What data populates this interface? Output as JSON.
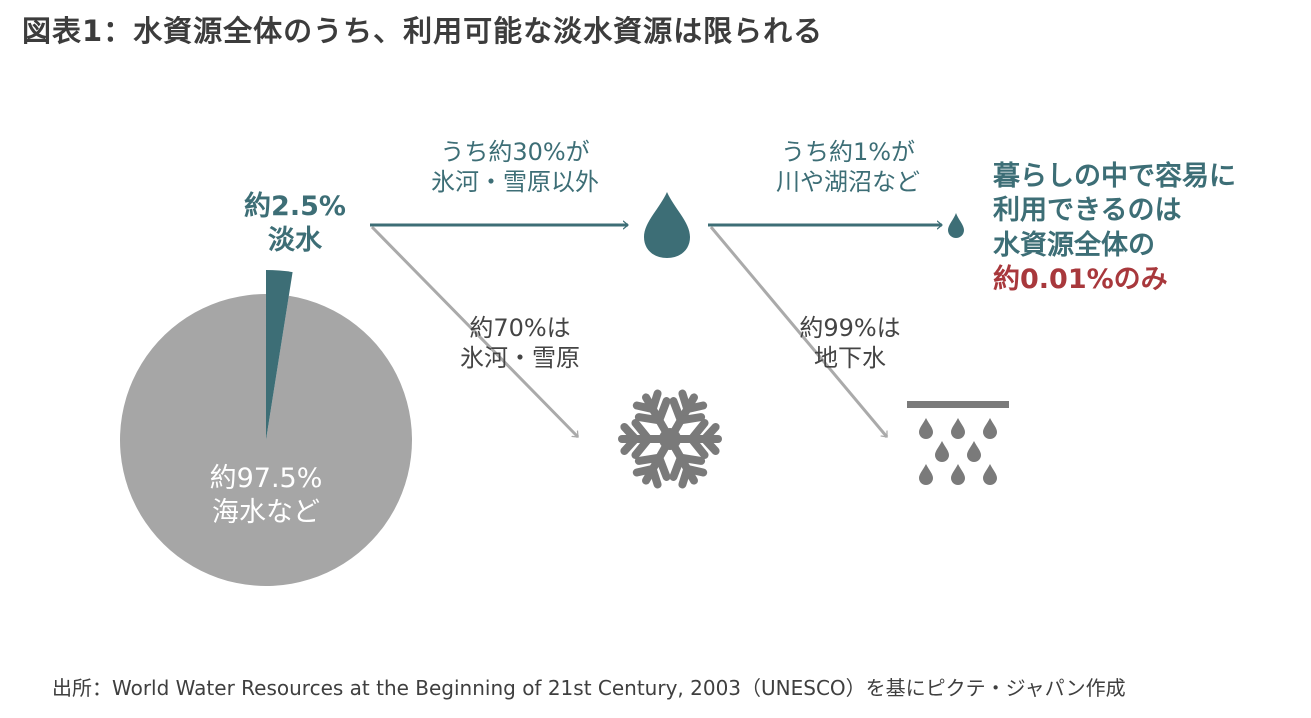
{
  "title": "図表1：水資源全体のうち、利用可能な淡水資源は限られる",
  "pie": {
    "freshwater_label": [
      "約2.5%",
      "淡水"
    ],
    "seawater_label": [
      "約97.5%",
      "海水など"
    ]
  },
  "chart_data": {
    "type": "pie",
    "categories": [
      "淡水",
      "海水など"
    ],
    "values": [
      2.5,
      97.5
    ],
    "colors": [
      "#3d6e76",
      "#a6a6a6"
    ]
  },
  "flow": {
    "to_drop_top": [
      "うち約30%が",
      "氷河・雪原以外"
    ],
    "to_snow": [
      "約70%は",
      "氷河・雪原"
    ],
    "to_small_drop_top": [
      "うち約1%が",
      "川や湖沼など"
    ],
    "to_ground": [
      "約99%は",
      "地下水"
    ]
  },
  "conclusion": {
    "lines": [
      "暮らしの中で容易に",
      "利用できるのは",
      "水資源全体の"
    ],
    "highlight": "約0.01%のみ"
  },
  "icons": {
    "large_drop": "water-drop-icon",
    "small_drop": "small-water-drop-icon",
    "snowflake": "snowflake-icon",
    "groundwater": "groundwater-icon"
  },
  "colors": {
    "teal": "#3d6e76",
    "gray_arrow": "#aaaaaa",
    "pie_gray": "#a6a6a6",
    "icon_gray": "#7a7a7a",
    "highlight_red": "#a8383c"
  },
  "source": "出所：World Water Resources at the Beginning of 21st Century, 2003（UNESCO）を基にピクテ・ジャパン作成"
}
